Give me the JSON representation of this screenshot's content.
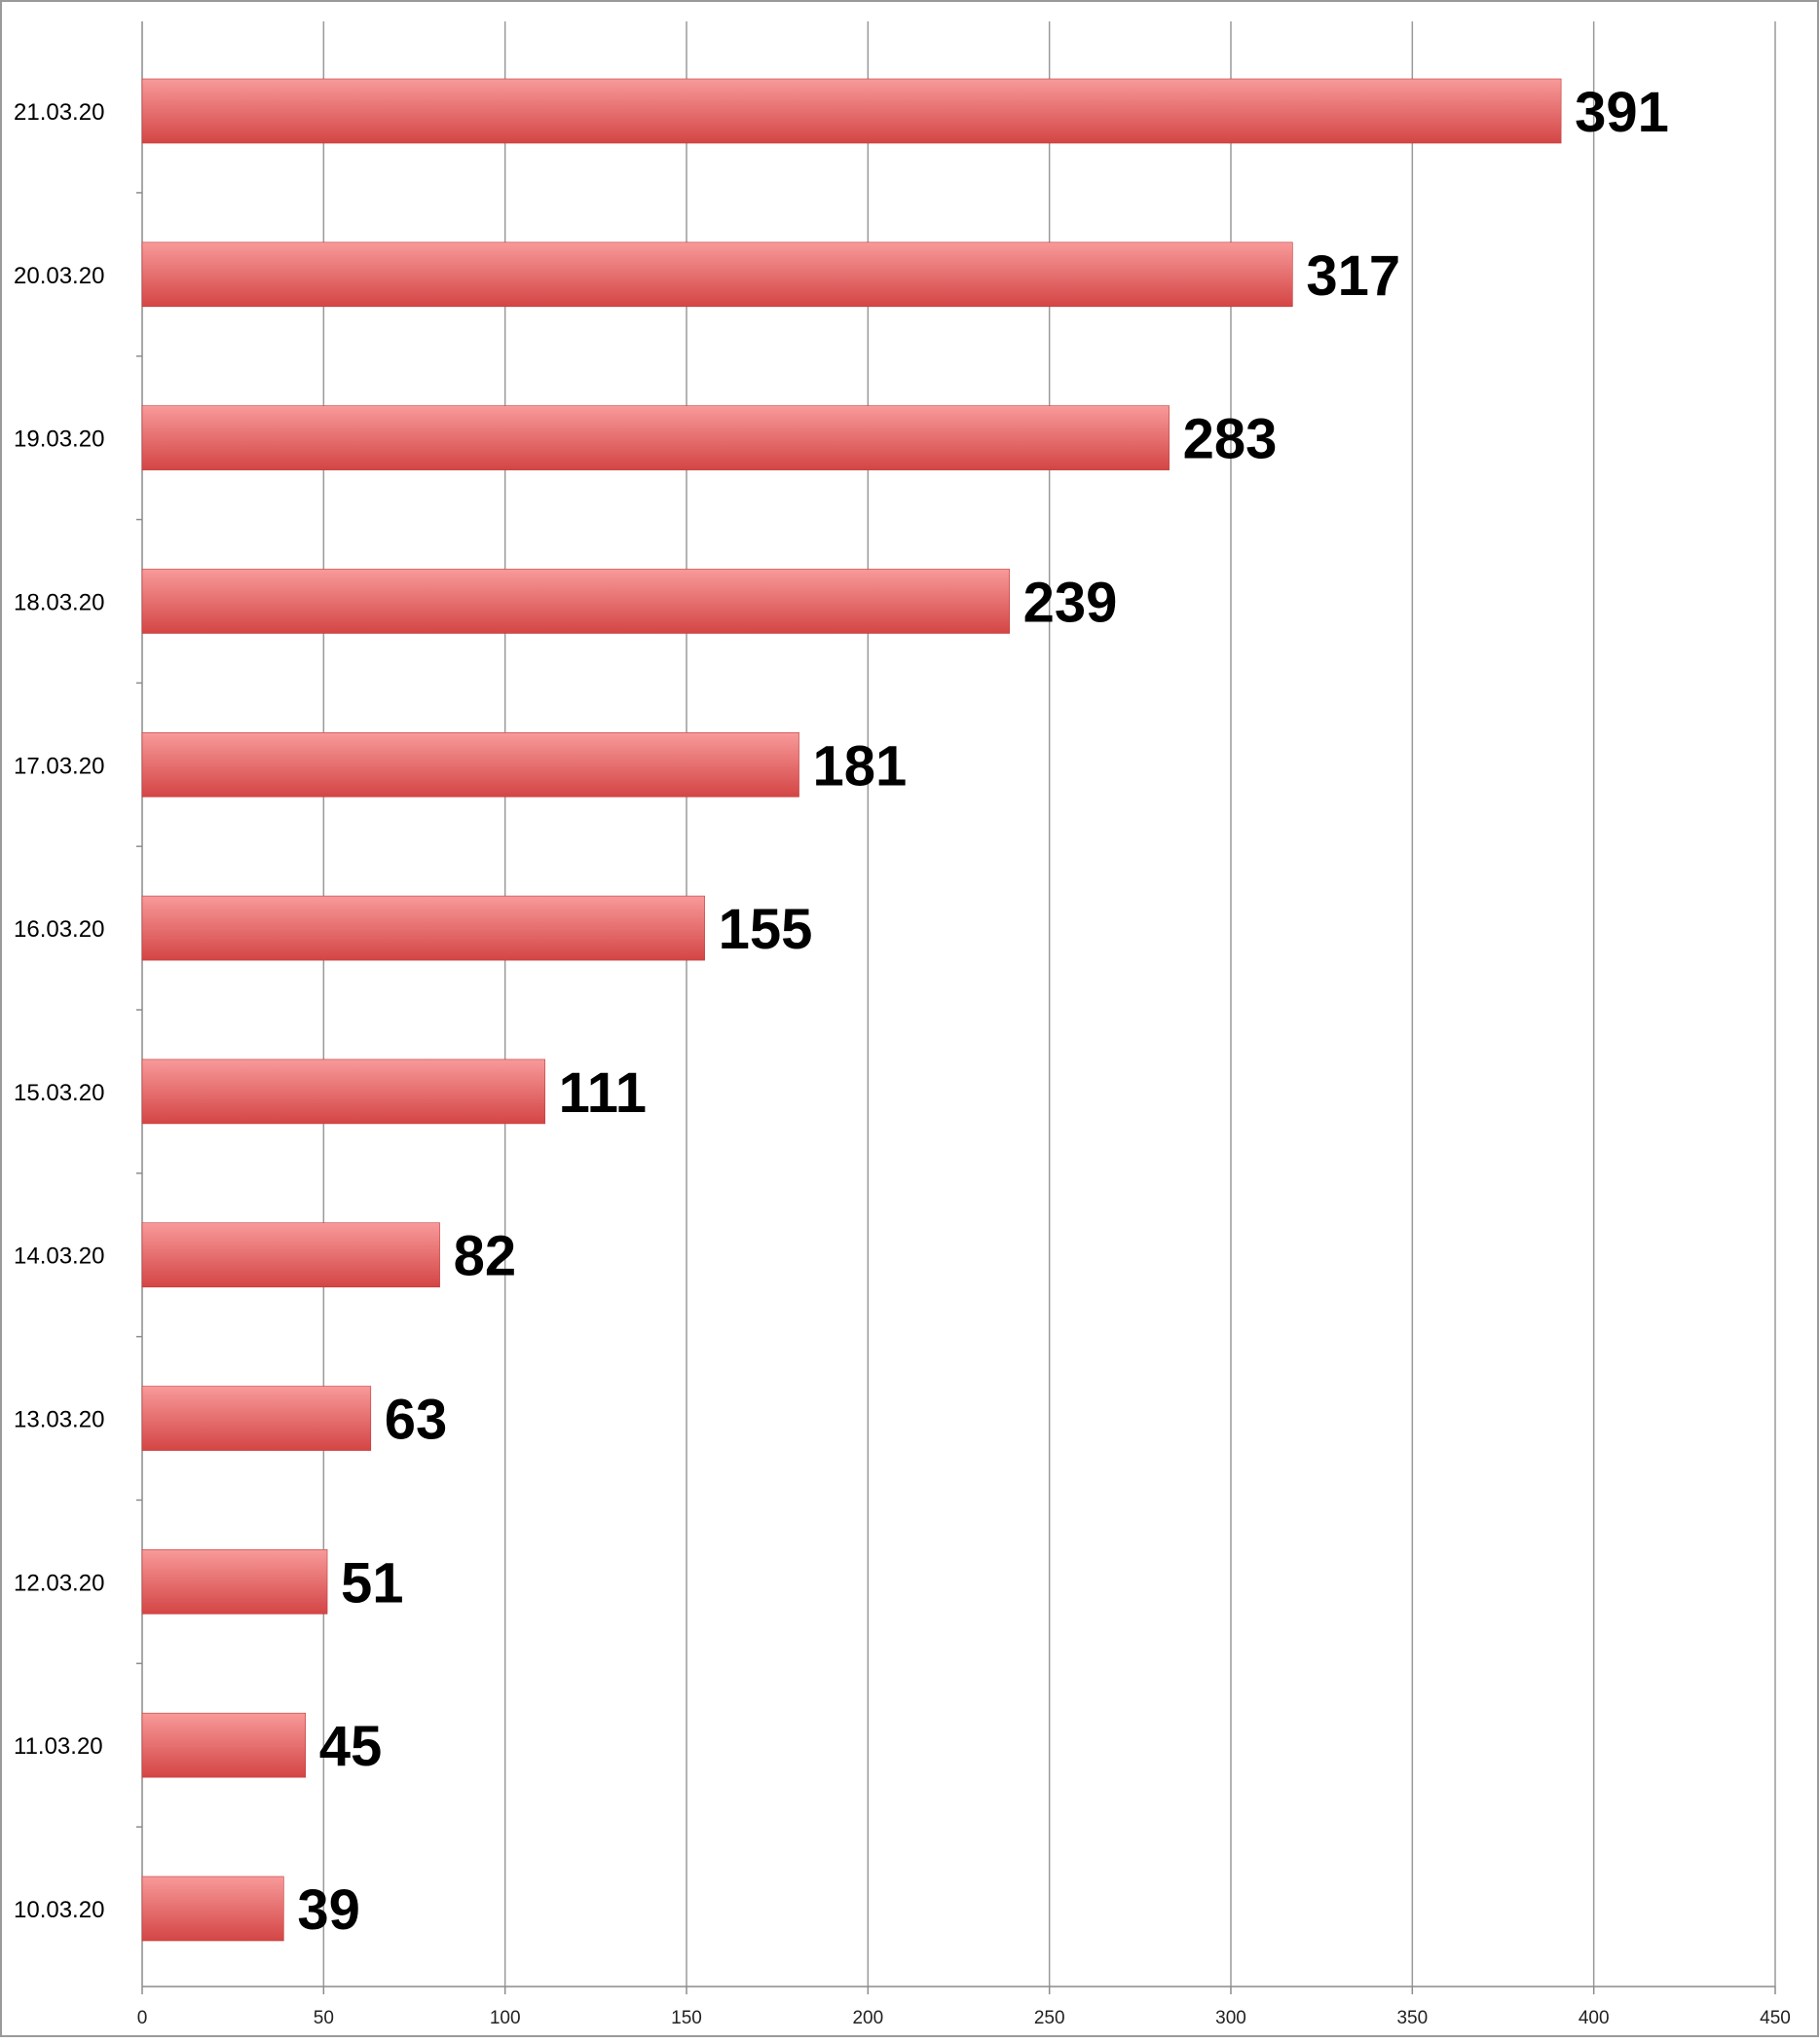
{
  "chart_data": {
    "type": "bar",
    "orientation": "horizontal",
    "categories": [
      "21.03.20",
      "20.03.20",
      "19.03.20",
      "18.03.20",
      "17.03.20",
      "16.03.20",
      "15.03.20",
      "14.03.20",
      "13.03.20",
      "12.03.20",
      "11.03.20",
      "10.03.20"
    ],
    "values": [
      391,
      317,
      283,
      239,
      181,
      155,
      111,
      82,
      63,
      51,
      45,
      39
    ],
    "data_labels": [
      "391",
      "317",
      "283",
      "239",
      "181",
      "155",
      "111",
      "82",
      "63",
      "51",
      "45",
      "39"
    ],
    "highlight_index": 0,
    "title": "",
    "xlabel": "",
    "ylabel": "",
    "xlim": [
      0,
      450
    ],
    "x_ticks": [
      "0",
      "50",
      "100",
      "150",
      "200",
      "250",
      "300",
      "350",
      "400",
      "450"
    ],
    "grid": "vertical",
    "legend": "none"
  },
  "colors": {
    "bar_light": "#f89a9a",
    "bar_dark": "#d44545",
    "highlight_label": "#ff0000",
    "label": "#000000",
    "grid": "#9a9a9a",
    "axis": "#8c8c8c",
    "border": "#9a9a9a"
  }
}
